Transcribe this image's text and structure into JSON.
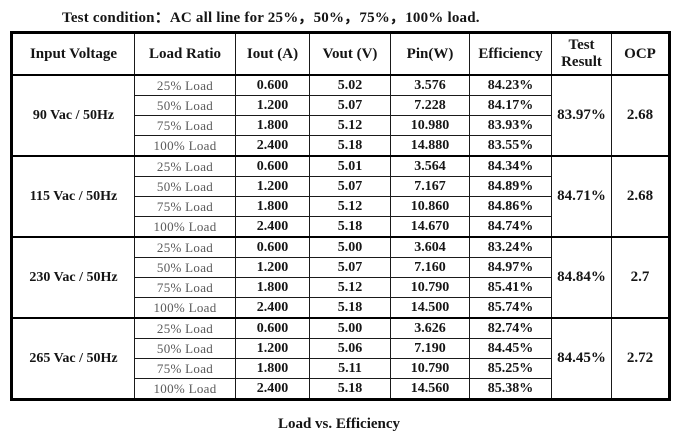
{
  "page": {
    "test_condition": "Test condition：AC all line for 25%，50%，75%，100% load.",
    "caption": "Load vs. Efficiency"
  },
  "colors": {
    "border": "#000000",
    "text": "#151515",
    "load_ratio_text": "#5a5a5a",
    "background": "#ffffff"
  },
  "table": {
    "headers": [
      "Input Voltage",
      "Load Ratio",
      "Iout (A)",
      "Vout (V)",
      "Pin(W)",
      "Efficiency",
      "Test Result",
      "OCP"
    ],
    "groups": [
      {
        "input_voltage": "90 Vac / 50Hz",
        "test_result": "83.97%",
        "ocp": "2.68",
        "rows": [
          {
            "load_ratio": "25% Load",
            "iout": "0.600",
            "vout": "5.02",
            "pin": "3.576",
            "efficiency": "84.23%"
          },
          {
            "load_ratio": "50% Load",
            "iout": "1.200",
            "vout": "5.07",
            "pin": "7.228",
            "efficiency": "84.17%"
          },
          {
            "load_ratio": "75% Load",
            "iout": "1.800",
            "vout": "5.12",
            "pin": "10.980",
            "efficiency": "83.93%"
          },
          {
            "load_ratio": "100% Load",
            "iout": "2.400",
            "vout": "5.18",
            "pin": "14.880",
            "efficiency": "83.55%"
          }
        ]
      },
      {
        "input_voltage": "115 Vac / 50Hz",
        "test_result": "84.71%",
        "ocp": "2.68",
        "rows": [
          {
            "load_ratio": "25% Load",
            "iout": "0.600",
            "vout": "5.01",
            "pin": "3.564",
            "efficiency": "84.34%"
          },
          {
            "load_ratio": "50% Load",
            "iout": "1.200",
            "vout": "5.07",
            "pin": "7.167",
            "efficiency": "84.89%"
          },
          {
            "load_ratio": "75% Load",
            "iout": "1.800",
            "vout": "5.12",
            "pin": "10.860",
            "efficiency": "84.86%"
          },
          {
            "load_ratio": "100% Load",
            "iout": "2.400",
            "vout": "5.18",
            "pin": "14.670",
            "efficiency": "84.74%"
          }
        ]
      },
      {
        "input_voltage": "230 Vac / 50Hz",
        "test_result": "84.84%",
        "ocp": "2.7",
        "rows": [
          {
            "load_ratio": "25% Load",
            "iout": "0.600",
            "vout": "5.00",
            "pin": "3.604",
            "efficiency": "83.24%"
          },
          {
            "load_ratio": "50% Load",
            "iout": "1.200",
            "vout": "5.07",
            "pin": "7.160",
            "efficiency": "84.97%"
          },
          {
            "load_ratio": "75% Load",
            "iout": "1.800",
            "vout": "5.12",
            "pin": "10.790",
            "efficiency": "85.41%"
          },
          {
            "load_ratio": "100% Load",
            "iout": "2.400",
            "vout": "5.18",
            "pin": "14.500",
            "efficiency": "85.74%"
          }
        ]
      },
      {
        "input_voltage": "265 Vac / 50Hz",
        "test_result": "84.45%",
        "ocp": "2.72",
        "rows": [
          {
            "load_ratio": "25% Load",
            "iout": "0.600",
            "vout": "5.00",
            "pin": "3.626",
            "efficiency": "82.74%"
          },
          {
            "load_ratio": "50% Load",
            "iout": "1.200",
            "vout": "5.06",
            "pin": "7.190",
            "efficiency": "84.45%"
          },
          {
            "load_ratio": "75% Load",
            "iout": "1.800",
            "vout": "5.11",
            "pin": "10.790",
            "efficiency": "85.25%"
          },
          {
            "load_ratio": "100% Load",
            "iout": "2.400",
            "vout": "5.18",
            "pin": "14.560",
            "efficiency": "85.38%"
          }
        ]
      }
    ]
  }
}
